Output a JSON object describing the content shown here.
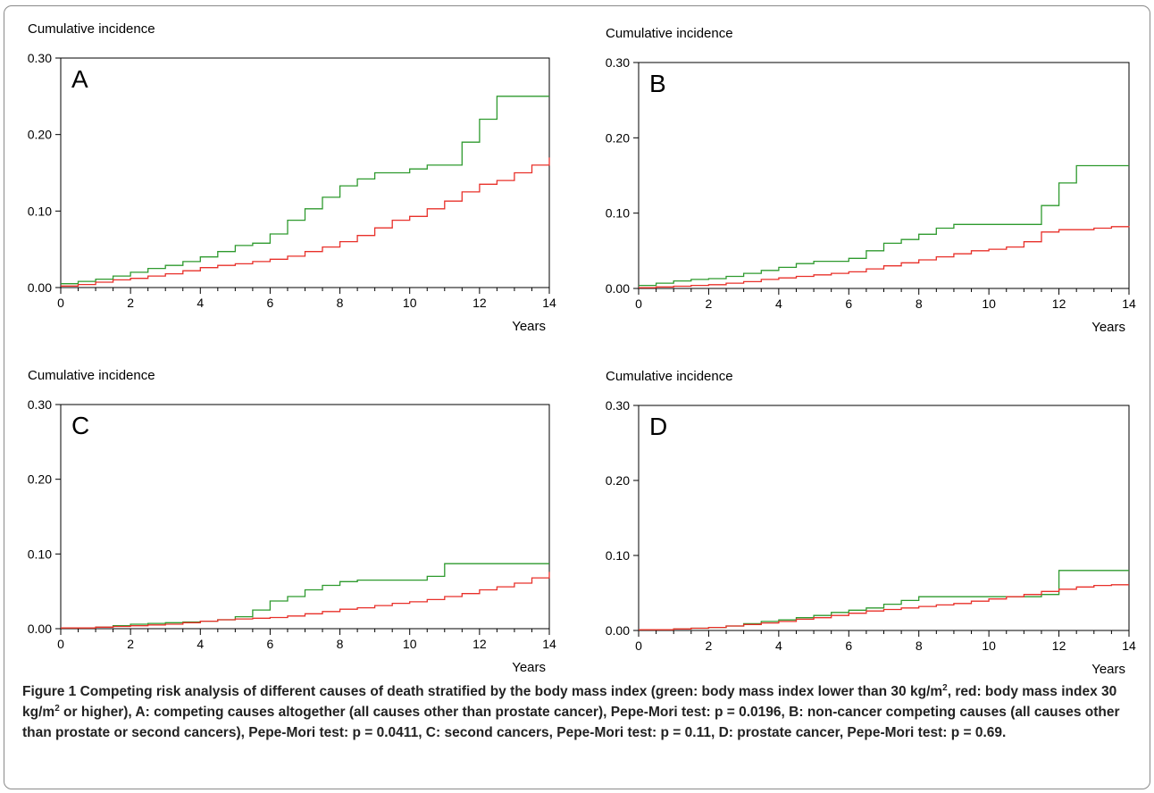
{
  "caption": {
    "label": "Figure 1",
    "text_parts": [
      "Competing risk analysis of different causes of death stratified by the body mass index (green: body mass index lower than 30 kg/m",
      "2",
      ", red: body mass index 30 kg/m",
      "2",
      " or higher), A: competing causes altogether (all causes other than prostate cancer), Pepe-Mori test: p = 0.0196, B: non-cancer competing causes (all causes other than prostate or second cancers), Pepe-Mori test: p = 0.0411, C: second cancers, Pepe-Mori test: p = 0.11, D: prostate cancer, Pepe-Mori test: p = 0.69."
    ]
  },
  "colors": {
    "green": "#2e9a2e",
    "red": "#e8302a",
    "axis": "#000000"
  },
  "chart_data": [
    {
      "type": "line",
      "panel": "A",
      "ylabel": "Cumulative incidence",
      "xlabel": "Years",
      "xlim": [
        0,
        14
      ],
      "ylim": [
        0,
        0.3
      ],
      "xticks": [
        "0",
        "2",
        "4",
        "6",
        "8",
        "10",
        "12",
        "14"
      ],
      "yticks": [
        "0.00",
        "0.10",
        "0.20",
        "0.30"
      ],
      "series": [
        {
          "color": "green",
          "x": [
            0,
            0.5,
            1,
            1.5,
            2,
            2.5,
            3,
            3.5,
            4,
            4.5,
            5,
            5.5,
            6,
            6.5,
            7,
            7.5,
            8,
            8.5,
            9,
            9.5,
            10,
            10.5,
            11,
            11.5,
            12,
            12.5,
            13,
            13.5,
            14
          ],
          "y": [
            0.005,
            0.008,
            0.011,
            0.015,
            0.02,
            0.025,
            0.029,
            0.034,
            0.04,
            0.047,
            0.055,
            0.058,
            0.07,
            0.088,
            0.103,
            0.118,
            0.133,
            0.142,
            0.15,
            0.15,
            0.155,
            0.16,
            0.16,
            0.19,
            0.22,
            0.25,
            0.25,
            0.25,
            0.25
          ]
        },
        {
          "color": "red",
          "x": [
            0,
            0.5,
            1,
            1.5,
            2,
            2.5,
            3,
            3.5,
            4,
            4.5,
            5,
            5.5,
            6,
            6.5,
            7,
            7.5,
            8,
            8.5,
            9,
            9.5,
            10,
            10.5,
            11,
            11.5,
            12,
            12.5,
            13,
            13.5,
            14
          ],
          "y": [
            0.002,
            0.004,
            0.007,
            0.01,
            0.012,
            0.015,
            0.018,
            0.022,
            0.026,
            0.029,
            0.031,
            0.034,
            0.037,
            0.041,
            0.047,
            0.053,
            0.06,
            0.068,
            0.078,
            0.088,
            0.093,
            0.103,
            0.113,
            0.125,
            0.135,
            0.14,
            0.15,
            0.16,
            0.17
          ]
        }
      ]
    },
    {
      "type": "line",
      "panel": "B",
      "ylabel": "Cumulative incidence",
      "xlabel": "Years",
      "xlim": [
        0,
        14
      ],
      "ylim": [
        0,
        0.3
      ],
      "xticks": [
        "0",
        "2",
        "4",
        "6",
        "8",
        "10",
        "12",
        "14"
      ],
      "yticks": [
        "0.00",
        "0.10",
        "0.20",
        "0.30"
      ],
      "series": [
        {
          "color": "green",
          "x": [
            0,
            0.5,
            1,
            1.5,
            2,
            2.5,
            3,
            3.5,
            4,
            4.5,
            5,
            5.5,
            6,
            6.5,
            7,
            7.5,
            8,
            8.5,
            9,
            9.5,
            10,
            10.5,
            11,
            11.5,
            12,
            12.5,
            13,
            13.5,
            14
          ],
          "y": [
            0.004,
            0.007,
            0.01,
            0.012,
            0.013,
            0.016,
            0.02,
            0.024,
            0.028,
            0.033,
            0.036,
            0.036,
            0.04,
            0.05,
            0.06,
            0.065,
            0.072,
            0.08,
            0.085,
            0.085,
            0.085,
            0.085,
            0.085,
            0.11,
            0.14,
            0.163,
            0.163,
            0.163,
            0.163
          ]
        },
        {
          "color": "red",
          "x": [
            0,
            0.5,
            1,
            1.5,
            2,
            2.5,
            3,
            3.5,
            4,
            4.5,
            5,
            5.5,
            6,
            6.5,
            7,
            7.5,
            8,
            8.5,
            9,
            9.5,
            10,
            10.5,
            11,
            11.5,
            12,
            12.5,
            13,
            13.5,
            14
          ],
          "y": [
            0.001,
            0.002,
            0.003,
            0.004,
            0.005,
            0.007,
            0.009,
            0.012,
            0.014,
            0.016,
            0.018,
            0.02,
            0.022,
            0.026,
            0.03,
            0.034,
            0.038,
            0.042,
            0.046,
            0.05,
            0.052,
            0.055,
            0.062,
            0.075,
            0.078,
            0.078,
            0.08,
            0.082,
            0.083
          ]
        }
      ]
    },
    {
      "type": "line",
      "panel": "C",
      "ylabel": "Cumulative incidence",
      "xlabel": "Years",
      "xlim": [
        0,
        14
      ],
      "ylim": [
        0,
        0.3
      ],
      "xticks": [
        "0",
        "2",
        "4",
        "6",
        "8",
        "10",
        "12",
        "14"
      ],
      "yticks": [
        "0.00",
        "0.10",
        "0.20",
        "0.30"
      ],
      "series": [
        {
          "color": "green",
          "x": [
            0,
            0.5,
            1,
            1.5,
            2,
            2.5,
            3,
            3.5,
            4,
            4.5,
            5,
            5.5,
            6,
            6.5,
            7,
            7.5,
            8,
            8.5,
            9,
            9.5,
            10,
            10.5,
            11,
            11.5,
            12,
            12.5,
            13,
            13.5,
            14
          ],
          "y": [
            0.001,
            0.001,
            0.002,
            0.004,
            0.006,
            0.007,
            0.008,
            0.009,
            0.01,
            0.012,
            0.016,
            0.025,
            0.037,
            0.043,
            0.052,
            0.058,
            0.063,
            0.065,
            0.065,
            0.065,
            0.065,
            0.07,
            0.087,
            0.087,
            0.087,
            0.087,
            0.087,
            0.087,
            0.087
          ]
        },
        {
          "color": "red",
          "x": [
            0,
            0.5,
            1,
            1.5,
            2,
            2.5,
            3,
            3.5,
            4,
            4.5,
            5,
            5.5,
            6,
            6.5,
            7,
            7.5,
            8,
            8.5,
            9,
            9.5,
            10,
            10.5,
            11,
            11.5,
            12,
            12.5,
            13,
            13.5,
            14
          ],
          "y": [
            0.001,
            0.001,
            0.002,
            0.003,
            0.004,
            0.005,
            0.006,
            0.008,
            0.01,
            0.012,
            0.013,
            0.014,
            0.015,
            0.017,
            0.02,
            0.023,
            0.026,
            0.028,
            0.031,
            0.034,
            0.036,
            0.039,
            0.043,
            0.047,
            0.052,
            0.056,
            0.061,
            0.068,
            0.076
          ]
        }
      ]
    },
    {
      "type": "line",
      "panel": "D",
      "ylabel": "Cumulative incidence",
      "xlabel": "Years",
      "xlim": [
        0,
        14
      ],
      "ylim": [
        0,
        0.3
      ],
      "xticks": [
        "0",
        "2",
        "4",
        "6",
        "8",
        "10",
        "12",
        "14"
      ],
      "yticks": [
        "0.00",
        "0.10",
        "0.20",
        "0.30"
      ],
      "series": [
        {
          "color": "green",
          "x": [
            0,
            0.5,
            1,
            1.5,
            2,
            2.5,
            3,
            3.5,
            4,
            4.5,
            5,
            5.5,
            6,
            6.5,
            7,
            7.5,
            8,
            8.5,
            9,
            9.5,
            10,
            10.5,
            11,
            11.5,
            12,
            12.5,
            13,
            13.5,
            14
          ],
          "y": [
            0.001,
            0.001,
            0.002,
            0.003,
            0.004,
            0.006,
            0.009,
            0.012,
            0.014,
            0.017,
            0.02,
            0.024,
            0.027,
            0.03,
            0.035,
            0.04,
            0.045,
            0.045,
            0.045,
            0.045,
            0.045,
            0.045,
            0.045,
            0.048,
            0.08,
            0.08,
            0.08,
            0.08,
            0.08
          ]
        },
        {
          "color": "red",
          "x": [
            0,
            0.5,
            1,
            1.5,
            2,
            2.5,
            3,
            3.5,
            4,
            4.5,
            5,
            5.5,
            6,
            6.5,
            7,
            7.5,
            8,
            8.5,
            9,
            9.5,
            10,
            10.5,
            11,
            11.5,
            12,
            12.5,
            13,
            13.5,
            14
          ],
          "y": [
            0.001,
            0.001,
            0.002,
            0.003,
            0.004,
            0.006,
            0.008,
            0.01,
            0.012,
            0.015,
            0.017,
            0.02,
            0.023,
            0.026,
            0.028,
            0.03,
            0.032,
            0.034,
            0.036,
            0.039,
            0.042,
            0.045,
            0.048,
            0.052,
            0.055,
            0.058,
            0.06,
            0.061,
            0.061
          ]
        }
      ]
    }
  ]
}
